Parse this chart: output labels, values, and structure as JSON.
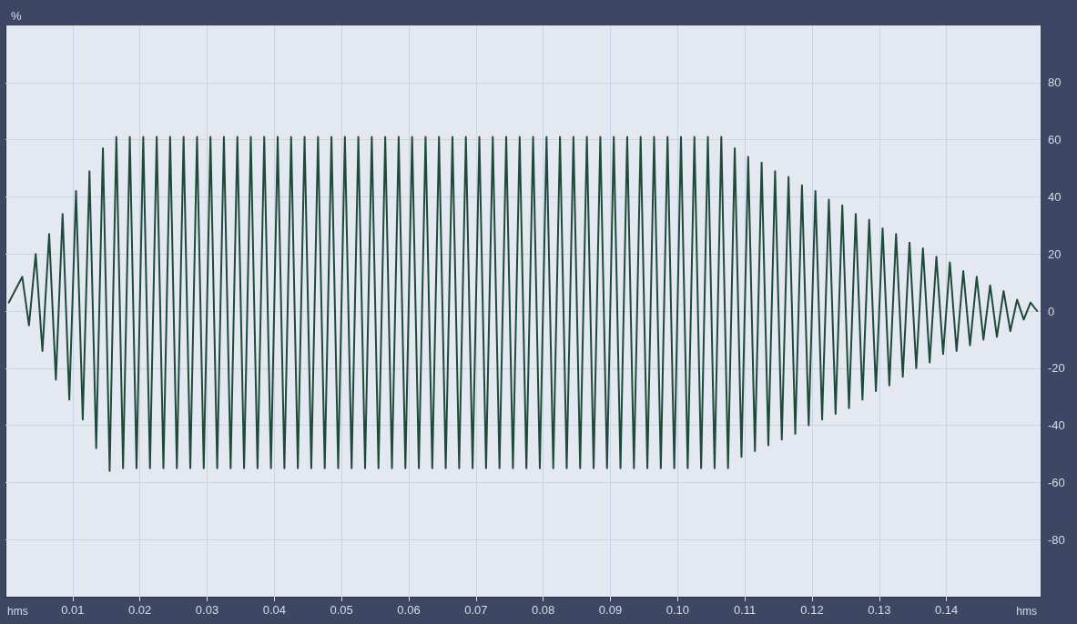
{
  "chart_data": {
    "type": "line",
    "xlabel": "hms",
    "ylabel": "%",
    "xlim": [
      0,
      0.154
    ],
    "xticks": [
      0.01,
      0.02,
      0.03,
      0.04,
      0.05,
      0.06,
      0.07,
      0.08,
      0.09,
      {
        "value": 0.1,
        "label": "0.10"
      },
      0.11,
      0.12,
      0.13,
      0.14
    ],
    "ylim": [
      -100,
      100
    ],
    "yticks": [
      -80,
      -60,
      -40,
      -20,
      0,
      20,
      40,
      60,
      80
    ],
    "grid": true,
    "line_style": "solid",
    "series": [
      {
        "color": "#1f4a3a",
        "x": [
          0.0005,
          0.0025,
          0.0035,
          0.0045,
          0.0055,
          0.0065,
          0.0075,
          0.0085,
          0.0095,
          0.0105,
          0.0115,
          0.0125,
          0.0135,
          0.0145,
          0.0155,
          0.0165,
          0.0175,
          0.0185,
          0.0195,
          0.0205,
          0.0215,
          0.0225,
          0.0235,
          0.0245,
          0.0255,
          0.0265,
          0.0275,
          0.0285,
          0.0295,
          0.0305,
          0.0315,
          0.0325,
          0.0335,
          0.0345,
          0.0355,
          0.0365,
          0.0375,
          0.0385,
          0.0395,
          0.0405,
          0.0415,
          0.0425,
          0.0435,
          0.0445,
          0.0455,
          0.0465,
          0.0475,
          0.0485,
          0.0495,
          0.0505,
          0.0515,
          0.0525,
          0.0535,
          0.0545,
          0.0555,
          0.0565,
          0.0575,
          0.0585,
          0.0595,
          0.0605,
          0.0615,
          0.0625,
          0.0635,
          0.0645,
          0.0655,
          0.0665,
          0.0675,
          0.0685,
          0.0695,
          0.0705,
          0.0715,
          0.0725,
          0.0735,
          0.0745,
          0.0755,
          0.0765,
          0.0775,
          0.0785,
          0.0795,
          0.0805,
          0.0815,
          0.0825,
          0.0835,
          0.0845,
          0.0855,
          0.0865,
          0.0875,
          0.0885,
          0.0895,
          0.0905,
          0.0915,
          0.0925,
          0.0935,
          0.0945,
          0.0955,
          0.0965,
          0.0975,
          0.0985,
          0.0995,
          0.1005,
          0.1015,
          0.1025,
          0.1035,
          0.1045,
          0.1055,
          0.1065,
          0.1075,
          0.1085,
          0.1095,
          0.1105,
          0.1115,
          0.1125,
          0.1135,
          0.1145,
          0.1155,
          0.1165,
          0.1175,
          0.1185,
          0.1195,
          0.1205,
          0.1215,
          0.1225,
          0.1235,
          0.1245,
          0.1255,
          0.1265,
          0.1275,
          0.1285,
          0.1295,
          0.1305,
          0.1315,
          0.1325,
          0.1335,
          0.1345,
          0.1355,
          0.1365,
          0.1375,
          0.1385,
          0.1395,
          0.1405,
          0.1415,
          0.1425,
          0.1435,
          0.1445,
          0.1455,
          0.1465,
          0.1475,
          0.1485,
          0.1495,
          0.1505,
          0.1515,
          0.1525,
          0.1535
        ],
        "values": [
          3,
          12,
          -5,
          20,
          -14,
          27,
          -24,
          34,
          -31,
          42,
          -38,
          49,
          -48,
          57,
          -56,
          61,
          -55,
          61,
          -55,
          61,
          -55,
          61,
          -55,
          61,
          -55,
          61,
          -55,
          61,
          -55,
          61,
          -55,
          61,
          -55,
          61,
          -55,
          61,
          -55,
          61,
          -55,
          61,
          -55,
          61,
          -55,
          61,
          -55,
          61,
          -55,
          61,
          -55,
          61,
          -55,
          61,
          -55,
          61,
          -55,
          61,
          -55,
          61,
          -55,
          61,
          -55,
          61,
          -55,
          61,
          -55,
          61,
          -55,
          61,
          -55,
          61,
          -55,
          61,
          -55,
          61,
          -55,
          61,
          -55,
          61,
          -55,
          61,
          -55,
          61,
          -55,
          61,
          -55,
          61,
          -55,
          61,
          -55,
          61,
          -55,
          61,
          -55,
          61,
          -55,
          61,
          -55,
          61,
          -55,
          61,
          -55,
          61,
          -55,
          61,
          -55,
          61,
          -55,
          57,
          -51,
          54,
          -49,
          52,
          -47,
          49,
          -45,
          47,
          -43,
          44,
          -40,
          42,
          -38,
          39,
          -36,
          37,
          -34,
          34,
          -31,
          32,
          -28,
          29,
          -26,
          27,
          -23,
          24,
          -20,
          22,
          -18,
          19,
          -15,
          17,
          -14,
          14,
          -12,
          12,
          -10,
          9,
          -9,
          7,
          -7,
          4,
          -3,
          3,
          0
        ]
      }
    ]
  }
}
